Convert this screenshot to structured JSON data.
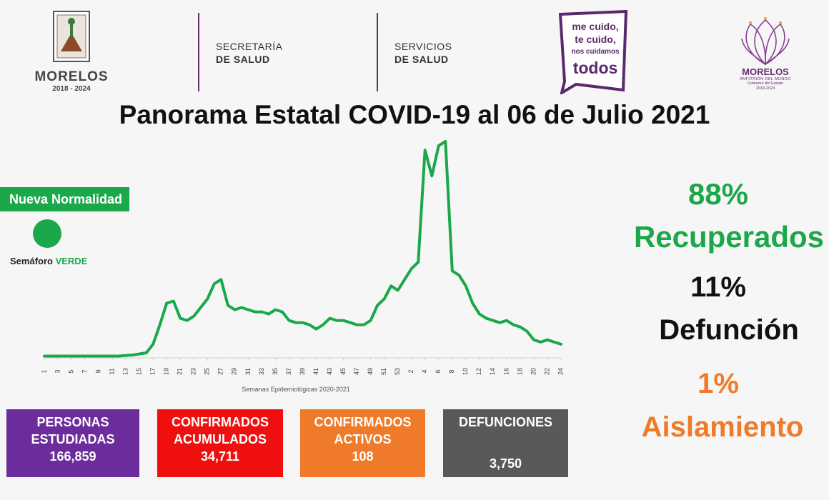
{
  "header": {
    "morelos_logo": {
      "name": "MORELOS",
      "years": "2018 - 2024"
    },
    "secretaria": {
      "line1": "SECRETARÍA",
      "line2": "DE SALUD"
    },
    "servicios": {
      "line1": "SERVICIOS",
      "line2": "DE SALUD"
    },
    "campaign_logo": {
      "line1": "me cuido,",
      "line2": "te cuido,",
      "line3": "nos cuidamos",
      "line4": "todos"
    },
    "lotus_logo": {
      "name": "MORELOS",
      "tagline": "ANFITRIÓN DEL MUNDO",
      "sub1": "Gobierno del Estado",
      "sub2": "2018-2024"
    }
  },
  "title": "Panorama Estatal COVID-19 al 06 de Julio 2021",
  "semaforo": {
    "badge": "Nueva Normalidad",
    "label_prefix": "Semáforo ",
    "label_status": "VERDE",
    "color": "#1aa84a"
  },
  "stats": {
    "recuperados": {
      "percent": "88%",
      "label": "Recuperados",
      "color": "#1aa84a"
    },
    "defuncion": {
      "percent": "11%",
      "label": "Defunción",
      "color": "#111111"
    },
    "aislamiento": {
      "percent": "1%",
      "label": "Aislamiento",
      "color": "#ef7b2a"
    }
  },
  "boxes": {
    "estudiadas": {
      "title_line1": "PERSONAS",
      "title_line2": "ESTUDIADAS",
      "value": "166,859",
      "color": "#6c2c9c"
    },
    "acumulados": {
      "title_line1": "CONFIRMADOS",
      "title_line2": "ACUMULADOS",
      "value": "34,711",
      "color": "#f00f0f"
    },
    "activos": {
      "title_line1": "CONFIRMADOS",
      "title_line2": "ACTIVOS",
      "value": "108",
      "color": "#ef7b2a"
    },
    "defunciones": {
      "title_line1": "DEFUNCIONES",
      "value": "3,750",
      "color": "#595959"
    }
  },
  "chart_data": {
    "type": "line",
    "xlabel": "Semanas Epidemiológicas 2020-2021",
    "ylabel": "",
    "line_color": "#1aa84a",
    "grid": false,
    "ylim": [
      0,
      100
    ],
    "tick_labels": [
      "1",
      "3",
      "5",
      "7",
      "9",
      "11",
      "13",
      "15",
      "17",
      "19",
      "21",
      "23",
      "25",
      "27",
      "29",
      "31",
      "33",
      "35",
      "37",
      "39",
      "41",
      "43",
      "45",
      "47",
      "49",
      "51",
      "53",
      "2",
      "4",
      "6",
      "8",
      "10",
      "12",
      "14",
      "16",
      "18",
      "20",
      "22",
      "24"
    ],
    "series": [
      {
        "values": [
          0.5,
          0.5,
          0.5,
          0.5,
          0.5,
          0.5,
          0.5,
          0.5,
          0.5,
          0.5,
          0.5,
          0.5,
          0.8,
          1,
          1.5,
          2,
          6,
          15,
          25,
          26,
          18,
          17,
          19,
          23,
          27,
          34,
          36,
          24,
          22,
          23,
          22,
          21,
          21,
          20,
          22,
          21,
          17,
          16,
          16,
          15,
          13,
          15,
          18,
          17,
          17,
          16,
          15,
          15,
          17,
          24,
          27,
          33,
          31,
          36,
          41,
          44,
          96,
          84,
          98,
          100,
          40,
          38,
          33,
          25,
          20,
          18,
          17,
          16,
          17,
          15,
          14,
          12,
          8,
          7,
          8,
          7,
          6
        ]
      }
    ]
  }
}
